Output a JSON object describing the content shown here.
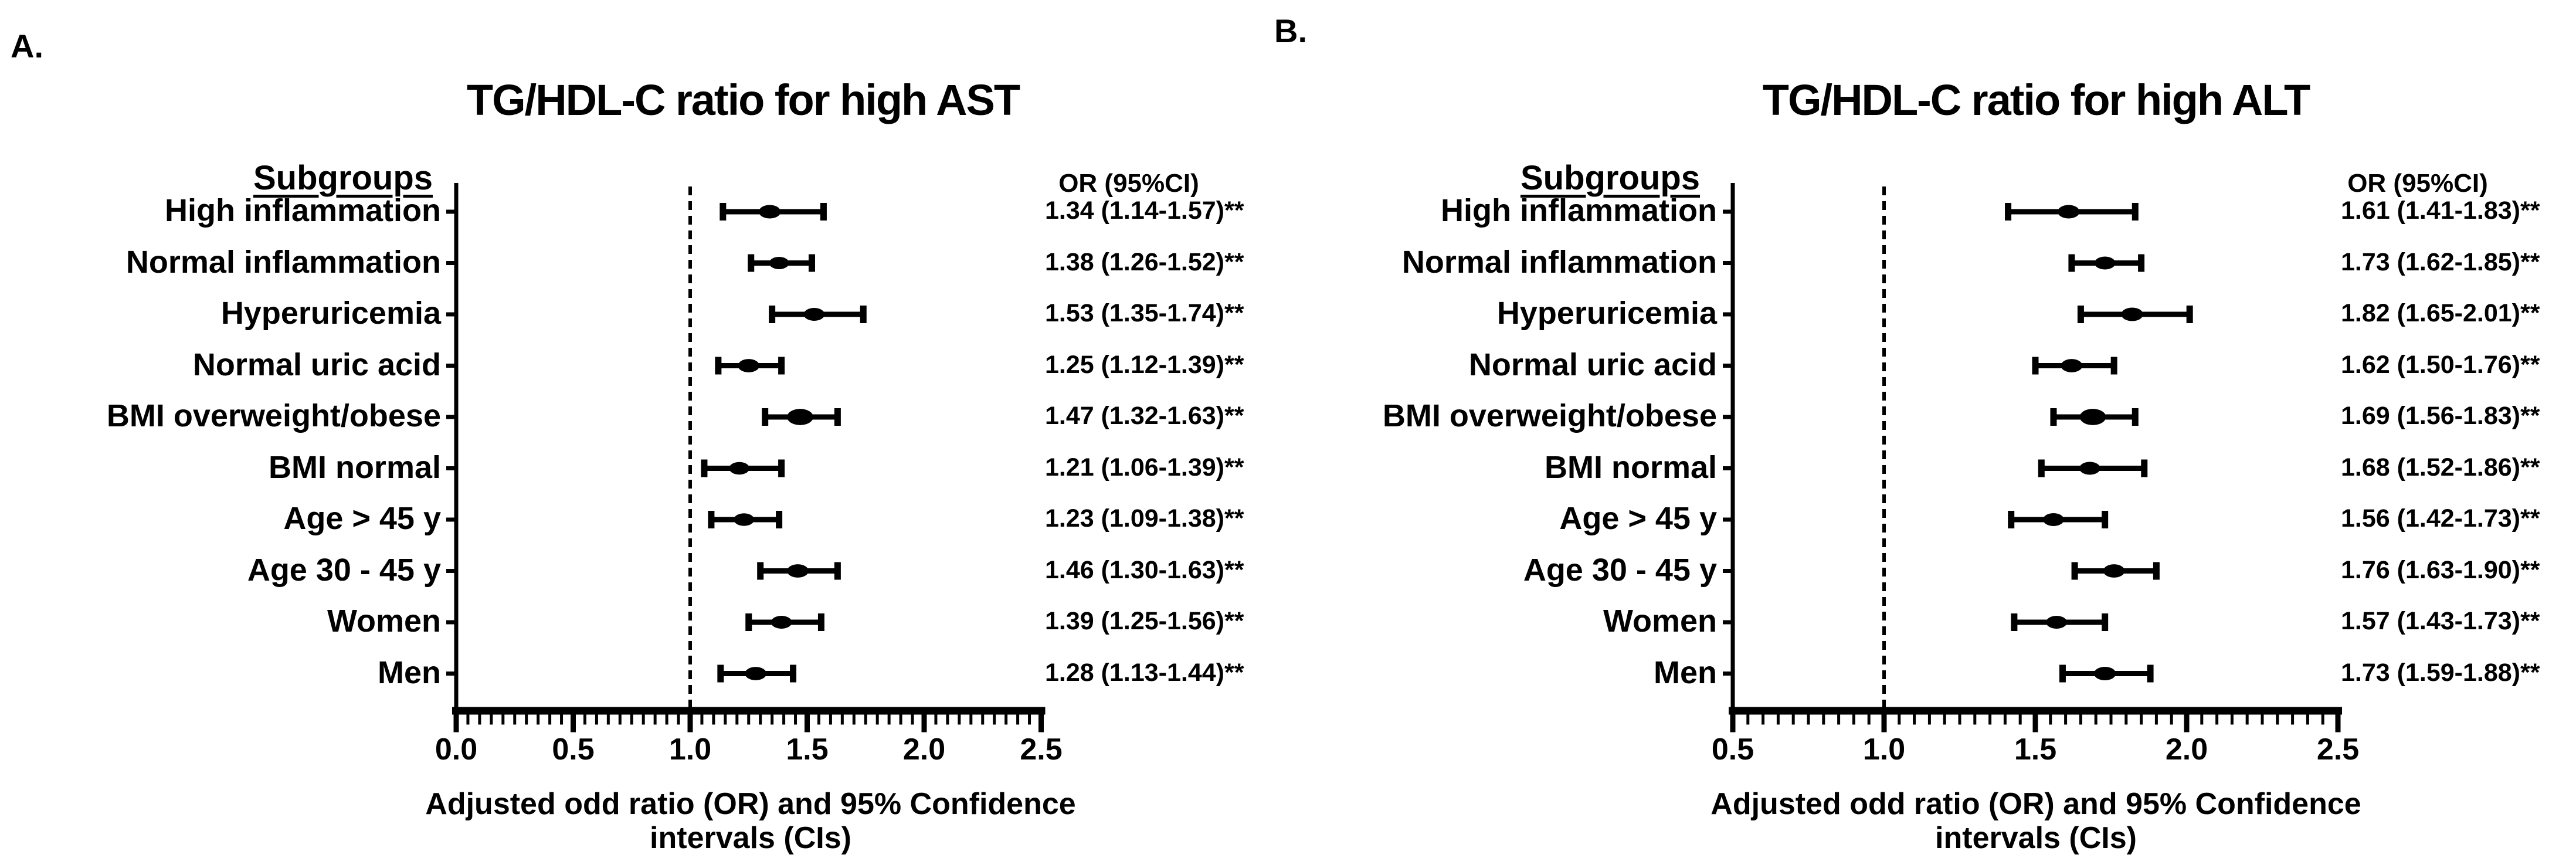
{
  "colors": {
    "ink": "#000000",
    "background": "#ffffff"
  },
  "chart_data": [
    {
      "type": "forest",
      "panel_label": "A.",
      "title": "TG/HDL-C ratio for high AST",
      "subgroups_header": "Subgroups",
      "or_header": "OR (95%CI)",
      "xlabel_lines": [
        "Adjusted odd ratio (OR) and 95% Confidence",
        "intervals (CIs)"
      ],
      "xlim": [
        0.0,
        2.5
      ],
      "xticks": [
        "0.0",
        "0.5",
        "1.0",
        "1.5",
        "2.0",
        "2.5"
      ],
      "xtick_values": [
        0.0,
        0.5,
        1.0,
        1.5,
        2.0,
        2.5
      ],
      "refline": 1.0,
      "grid": false,
      "rows": [
        {
          "label": "High inflammation",
          "or": 1.34,
          "ci_low": 1.14,
          "ci_high": 1.57,
          "or_text": "1.34 (1.14-1.57)**",
          "marker_size": 1.1
        },
        {
          "label": "Normal inflammation",
          "or": 1.38,
          "ci_low": 1.26,
          "ci_high": 1.52,
          "or_text": "1.38 (1.26-1.52)**",
          "marker_size": 1.0
        },
        {
          "label": "Hyperuricemia",
          "or": 1.53,
          "ci_low": 1.35,
          "ci_high": 1.74,
          "or_text": "1.53 (1.35-1.74)**",
          "marker_size": 1.05
        },
        {
          "label": "Normal uric acid",
          "or": 1.25,
          "ci_low": 1.12,
          "ci_high": 1.39,
          "or_text": "1.25 (1.12-1.39)**",
          "marker_size": 1.08
        },
        {
          "label": "BMI overweight/obese",
          "or": 1.47,
          "ci_low": 1.32,
          "ci_high": 1.63,
          "or_text": "1.47 (1.32-1.63)**",
          "marker_size": 1.32
        },
        {
          "label": "BMI normal",
          "or": 1.21,
          "ci_low": 1.06,
          "ci_high": 1.39,
          "or_text": "1.21 (1.06-1.39)**",
          "marker_size": 1.02
        },
        {
          "label": "Age > 45 y",
          "or": 1.23,
          "ci_low": 1.09,
          "ci_high": 1.38,
          "or_text": "1.23 (1.09-1.38)**",
          "marker_size": 1.02
        },
        {
          "label": "Age 30 - 45 y",
          "or": 1.46,
          "ci_low": 1.3,
          "ci_high": 1.63,
          "or_text": "1.46 (1.30-1.63)**",
          "marker_size": 1.08
        },
        {
          "label": "Women",
          "or": 1.39,
          "ci_low": 1.25,
          "ci_high": 1.56,
          "or_text": "1.39 (1.25-1.56)**",
          "marker_size": 1.05
        },
        {
          "label": "Men",
          "or": 1.28,
          "ci_low": 1.13,
          "ci_high": 1.44,
          "or_text": "1.28 (1.13-1.44)**",
          "marker_size": 1.08
        }
      ]
    },
    {
      "type": "forest",
      "panel_label": "B.",
      "title": "TG/HDL-C ratio for high ALT",
      "subgroups_header": "Subgroups",
      "or_header": "OR (95%CI)",
      "xlabel_lines": [
        "Adjusted odd ratio (OR) and 95% Confidence",
        "intervals (CIs)"
      ],
      "xlim": [
        0.5,
        2.5
      ],
      "xticks": [
        "0.5",
        "1.0",
        "1.5",
        "2.0",
        "2.5"
      ],
      "xtick_values": [
        0.5,
        1.0,
        1.5,
        2.0,
        2.5
      ],
      "refline": 1.0,
      "grid": false,
      "rows": [
        {
          "label": "High inflammation",
          "or": 1.61,
          "ci_low": 1.41,
          "ci_high": 1.83,
          "or_text": "1.61 (1.41-1.83)**",
          "marker_size": 1.1
        },
        {
          "label": "Normal inflammation",
          "or": 1.73,
          "ci_low": 1.62,
          "ci_high": 1.85,
          "or_text": "1.73 (1.62-1.85)**",
          "marker_size": 1.05
        },
        {
          "label": "Hyperuricemia",
          "or": 1.82,
          "ci_low": 1.65,
          "ci_high": 2.01,
          "or_text": "1.82 (1.65-2.01)**",
          "marker_size": 1.1
        },
        {
          "label": "Normal uric acid",
          "or": 1.62,
          "ci_low": 1.5,
          "ci_high": 1.76,
          "or_text": "1.62 (1.50-1.76)**",
          "marker_size": 1.08
        },
        {
          "label": "BMI overweight/obese",
          "or": 1.69,
          "ci_low": 1.56,
          "ci_high": 1.83,
          "or_text": "1.69 (1.56-1.83)**",
          "marker_size": 1.32
        },
        {
          "label": "BMI normal",
          "or": 1.68,
          "ci_low": 1.52,
          "ci_high": 1.86,
          "or_text": "1.68 (1.52-1.86)**",
          "marker_size": 1.05
        },
        {
          "label": "Age > 45 y",
          "or": 1.56,
          "ci_low": 1.42,
          "ci_high": 1.73,
          "or_text": "1.56 (1.42-1.73)**",
          "marker_size": 1.05
        },
        {
          "label": "Age 30 - 45 y",
          "or": 1.76,
          "ci_low": 1.63,
          "ci_high": 1.9,
          "or_text": "1.76 (1.63-1.90)**",
          "marker_size": 1.08
        },
        {
          "label": "Women",
          "or": 1.57,
          "ci_low": 1.43,
          "ci_high": 1.73,
          "or_text": "1.57 (1.43-1.73)**",
          "marker_size": 1.05
        },
        {
          "label": "Men",
          "or": 1.73,
          "ci_low": 1.59,
          "ci_high": 1.88,
          "or_text": "1.73 (1.59-1.88)**",
          "marker_size": 1.1
        }
      ]
    }
  ]
}
